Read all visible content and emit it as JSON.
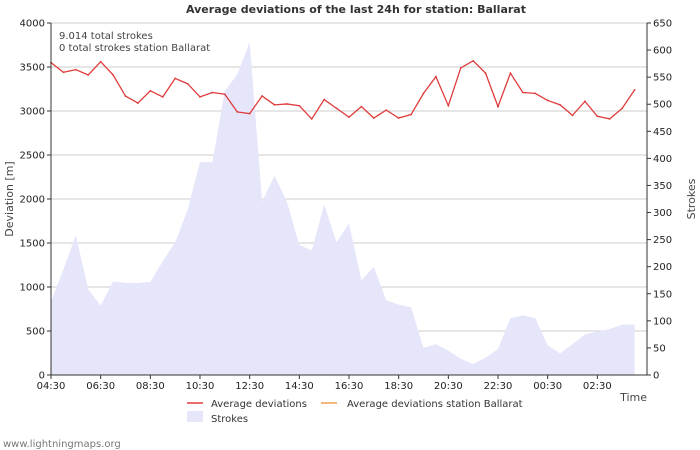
{
  "chart_data": {
    "type": "line",
    "title": "Average deviations of the last 24h for station: Ballarat",
    "xlabel": "Time",
    "ylabel": "Deviation  [m]",
    "y2label": "Strokes",
    "ylim": [
      0,
      4000
    ],
    "y2lim": [
      0,
      650
    ],
    "yticks": [
      0,
      500,
      1000,
      1500,
      2000,
      2500,
      3000,
      3500,
      4000
    ],
    "y2ticks": [
      0,
      50,
      100,
      150,
      200,
      250,
      300,
      350,
      400,
      450,
      500,
      550,
      600,
      650
    ],
    "xticks": [
      "04:30",
      "06:30",
      "08:30",
      "10:30",
      "12:30",
      "14:30",
      "16:30",
      "18:30",
      "20:30",
      "22:30",
      "00:30",
      "02:30"
    ],
    "grid": true,
    "annotations": [
      "9.014 total strokes",
      "0 total strokes station Ballarat"
    ],
    "x_hours": [
      0,
      0.5,
      1,
      1.5,
      2,
      2.5,
      3,
      3.5,
      4,
      4.5,
      5,
      5.5,
      6,
      6.5,
      7,
      7.5,
      8,
      8.5,
      9,
      9.5,
      10,
      10.5,
      11,
      11.5,
      12,
      12.5,
      13,
      13.5,
      14,
      14.5,
      15,
      15.5,
      16,
      16.5,
      17,
      17.5,
      18,
      18.5,
      19,
      19.5,
      20,
      20.5,
      21,
      21.5,
      22,
      22.5,
      23,
      23.5
    ],
    "series": [
      {
        "name": "Average deviations",
        "axis": "left",
        "color": "#e03c3c",
        "values": [
          3550,
          3440,
          3470,
          3410,
          3560,
          3410,
          3170,
          3090,
          3230,
          3160,
          3370,
          3310,
          3160,
          3210,
          3190,
          2990,
          2970,
          3170,
          3070,
          3080,
          3060,
          2910,
          3130,
          3030,
          2930,
          3050,
          2920,
          3010,
          2920,
          2960,
          3200,
          3390,
          3060,
          3490,
          3570,
          3430,
          3050,
          3430,
          3210,
          3200,
          3120,
          3070,
          2950,
          3110,
          2940,
          2910,
          3030,
          3240
        ]
      },
      {
        "name": "Average deviations station Ballarat",
        "axis": "left",
        "color": "#f0a050",
        "values": []
      },
      {
        "name": "Strokes",
        "axis": "right",
        "type": "area",
        "color": "#e6e6fa",
        "values": [
          135,
          195,
          258,
          158,
          128,
          173,
          170,
          170,
          172,
          210,
          245,
          305,
          393,
          393,
          525,
          555,
          615,
          320,
          368,
          320,
          240,
          230,
          315,
          245,
          280,
          175,
          200,
          138,
          130,
          125,
          50,
          57,
          45,
          30,
          20,
          32,
          48,
          105,
          110,
          105,
          55,
          40,
          57,
          75,
          80,
          85,
          93,
          93
        ]
      }
    ],
    "legend": [
      "Average deviations",
      "Average deviations station Ballarat",
      "Strokes"
    ]
  },
  "footer": {
    "credit": "www.lightningmaps.org"
  }
}
